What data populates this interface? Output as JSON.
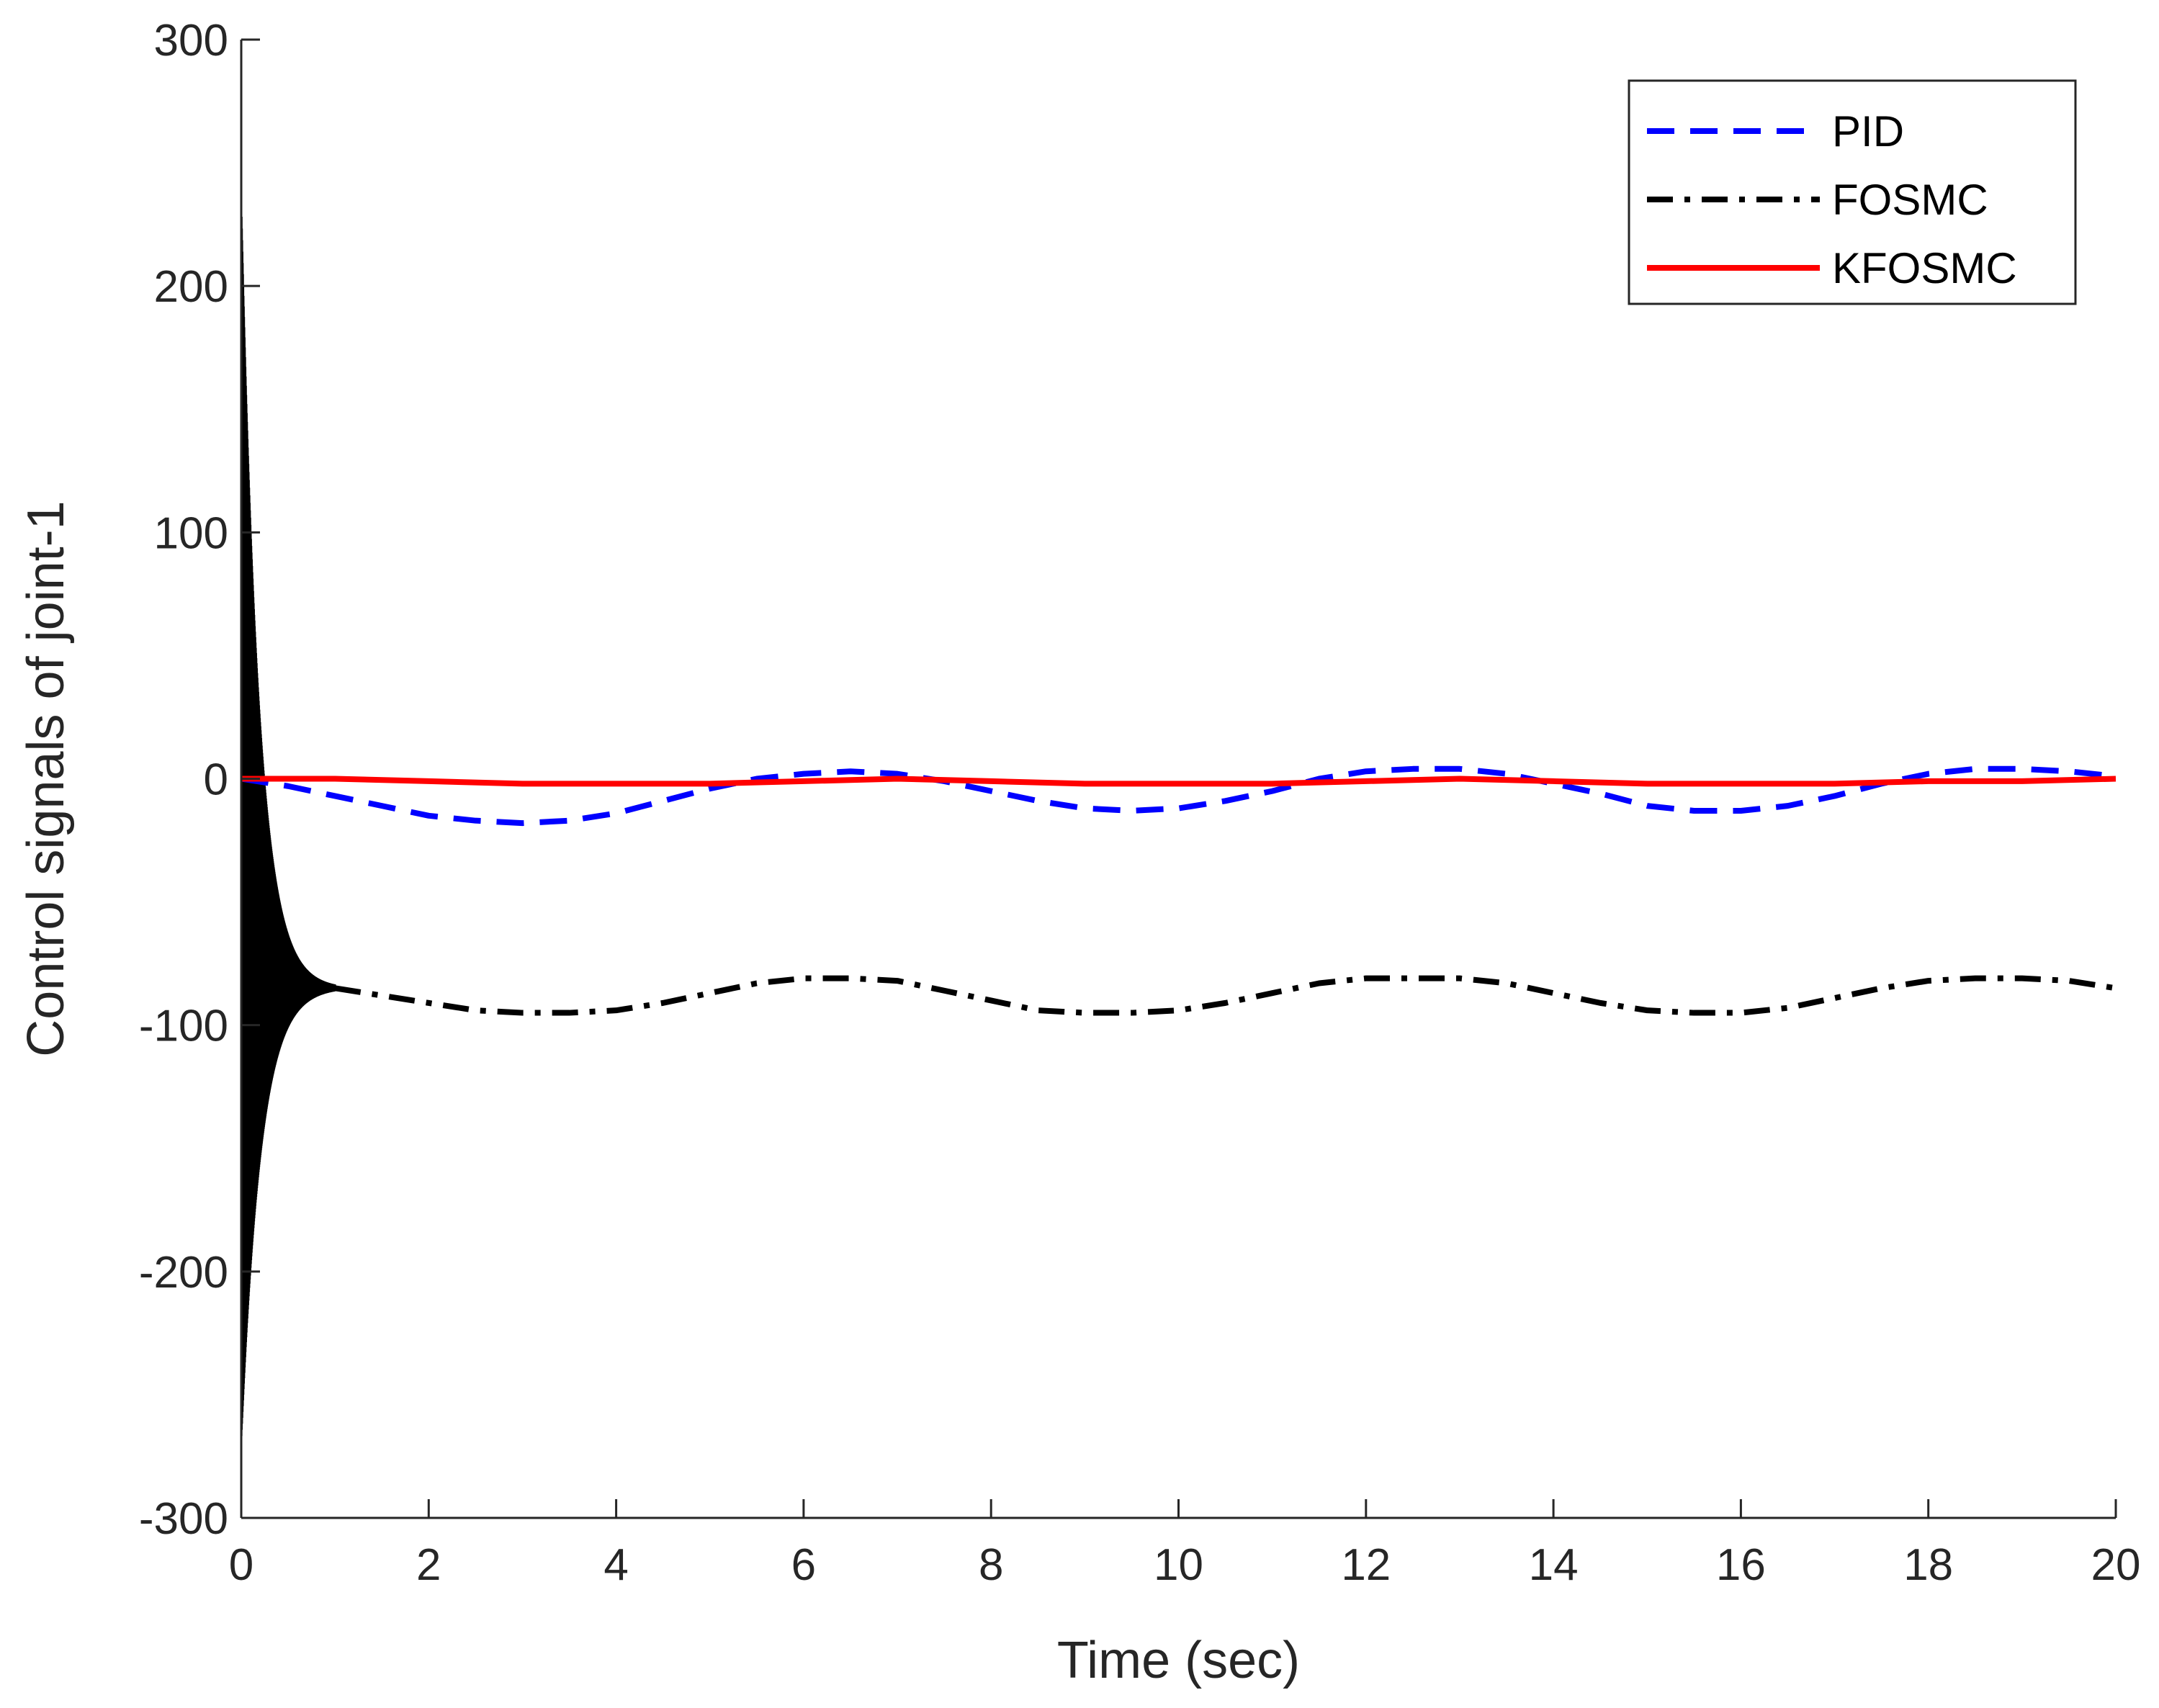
{
  "chart_data": {
    "type": "line",
    "title": "",
    "xlabel": "Time (sec)",
    "ylabel": "Control signals of joint-1",
    "xlim": [
      0,
      20
    ],
    "ylim": [
      -300,
      300
    ],
    "xticks": [
      0,
      2,
      4,
      6,
      8,
      10,
      12,
      14,
      16,
      18,
      20
    ],
    "yticks": [
      -300,
      -200,
      -100,
      0,
      100,
      200,
      300
    ],
    "xtick_labels": [
      "0",
      "2",
      "4",
      "6",
      "8",
      "10",
      "12",
      "14",
      "16",
      "18",
      "20"
    ],
    "ytick_labels": [
      "-300",
      "-200",
      "-100",
      "0",
      "100",
      "200",
      "300"
    ],
    "grid": false,
    "legend_position": "top-right",
    "series": [
      {
        "name": "PID",
        "color": "#0000ff",
        "style": "dashed",
        "x": [
          0,
          0.5,
          1,
          1.5,
          2,
          2.5,
          3,
          3.5,
          4,
          4.5,
          5,
          5.5,
          6,
          6.5,
          7,
          7.5,
          8,
          8.5,
          9,
          9.5,
          10,
          10.5,
          11,
          11.5,
          12,
          12.5,
          13,
          13.5,
          14,
          14.5,
          15,
          15.5,
          16,
          16.5,
          17,
          17.5,
          18,
          18.5,
          19,
          19.5,
          20
        ],
        "values": [
          0,
          -3,
          -7,
          -11,
          -15,
          -17,
          -18,
          -17,
          -14,
          -9,
          -4,
          0,
          2,
          3,
          2,
          -1,
          -5,
          -9,
          -12,
          -13,
          -12,
          -9,
          -5,
          0,
          3,
          4,
          4,
          2,
          -2,
          -6,
          -11,
          -13,
          -13,
          -11,
          -7,
          -2,
          2,
          4,
          4,
          3,
          1
        ]
      },
      {
        "name": "FOSMC",
        "color": "#000000",
        "style": "dashdot",
        "x": [
          1,
          1.5,
          2,
          2.5,
          3,
          3.5,
          4,
          4.5,
          5,
          5.5,
          6,
          6.5,
          7,
          7.5,
          8,
          8.5,
          9,
          9.5,
          10,
          10.5,
          11,
          11.5,
          12,
          12.5,
          13,
          13.5,
          14,
          14.5,
          15,
          15.5,
          16,
          16.5,
          17,
          17.5,
          18,
          18.5,
          19,
          19.5,
          20
        ],
        "values": [
          -85,
          -88,
          -91,
          -94,
          -95,
          -95,
          -94,
          -91,
          -87,
          -83,
          -81,
          -81,
          -82,
          -86,
          -90,
          -94,
          -95,
          -95,
          -94,
          -91,
          -87,
          -83,
          -81,
          -81,
          -81,
          -83,
          -87,
          -91,
          -94,
          -95,
          -95,
          -93,
          -89,
          -85,
          -82,
          -81,
          -81,
          -82,
          -85
        ],
        "transient": {
          "initial_peak": 233,
          "initial_trough": -268,
          "decay_time": 1
        }
      },
      {
        "name": "KFOSMC",
        "color": "#ff0000",
        "style": "solid",
        "x": [
          0,
          1,
          2,
          3,
          4,
          5,
          6,
          7,
          8,
          9,
          10,
          11,
          12,
          13,
          14,
          15,
          16,
          17,
          18,
          19,
          20
        ],
        "values": [
          0,
          0,
          -1,
          -2,
          -2,
          -2,
          -1,
          0,
          -1,
          -2,
          -2,
          -2,
          -1,
          0,
          -1,
          -2,
          -2,
          -2,
          -1,
          -1,
          0
        ]
      }
    ]
  }
}
